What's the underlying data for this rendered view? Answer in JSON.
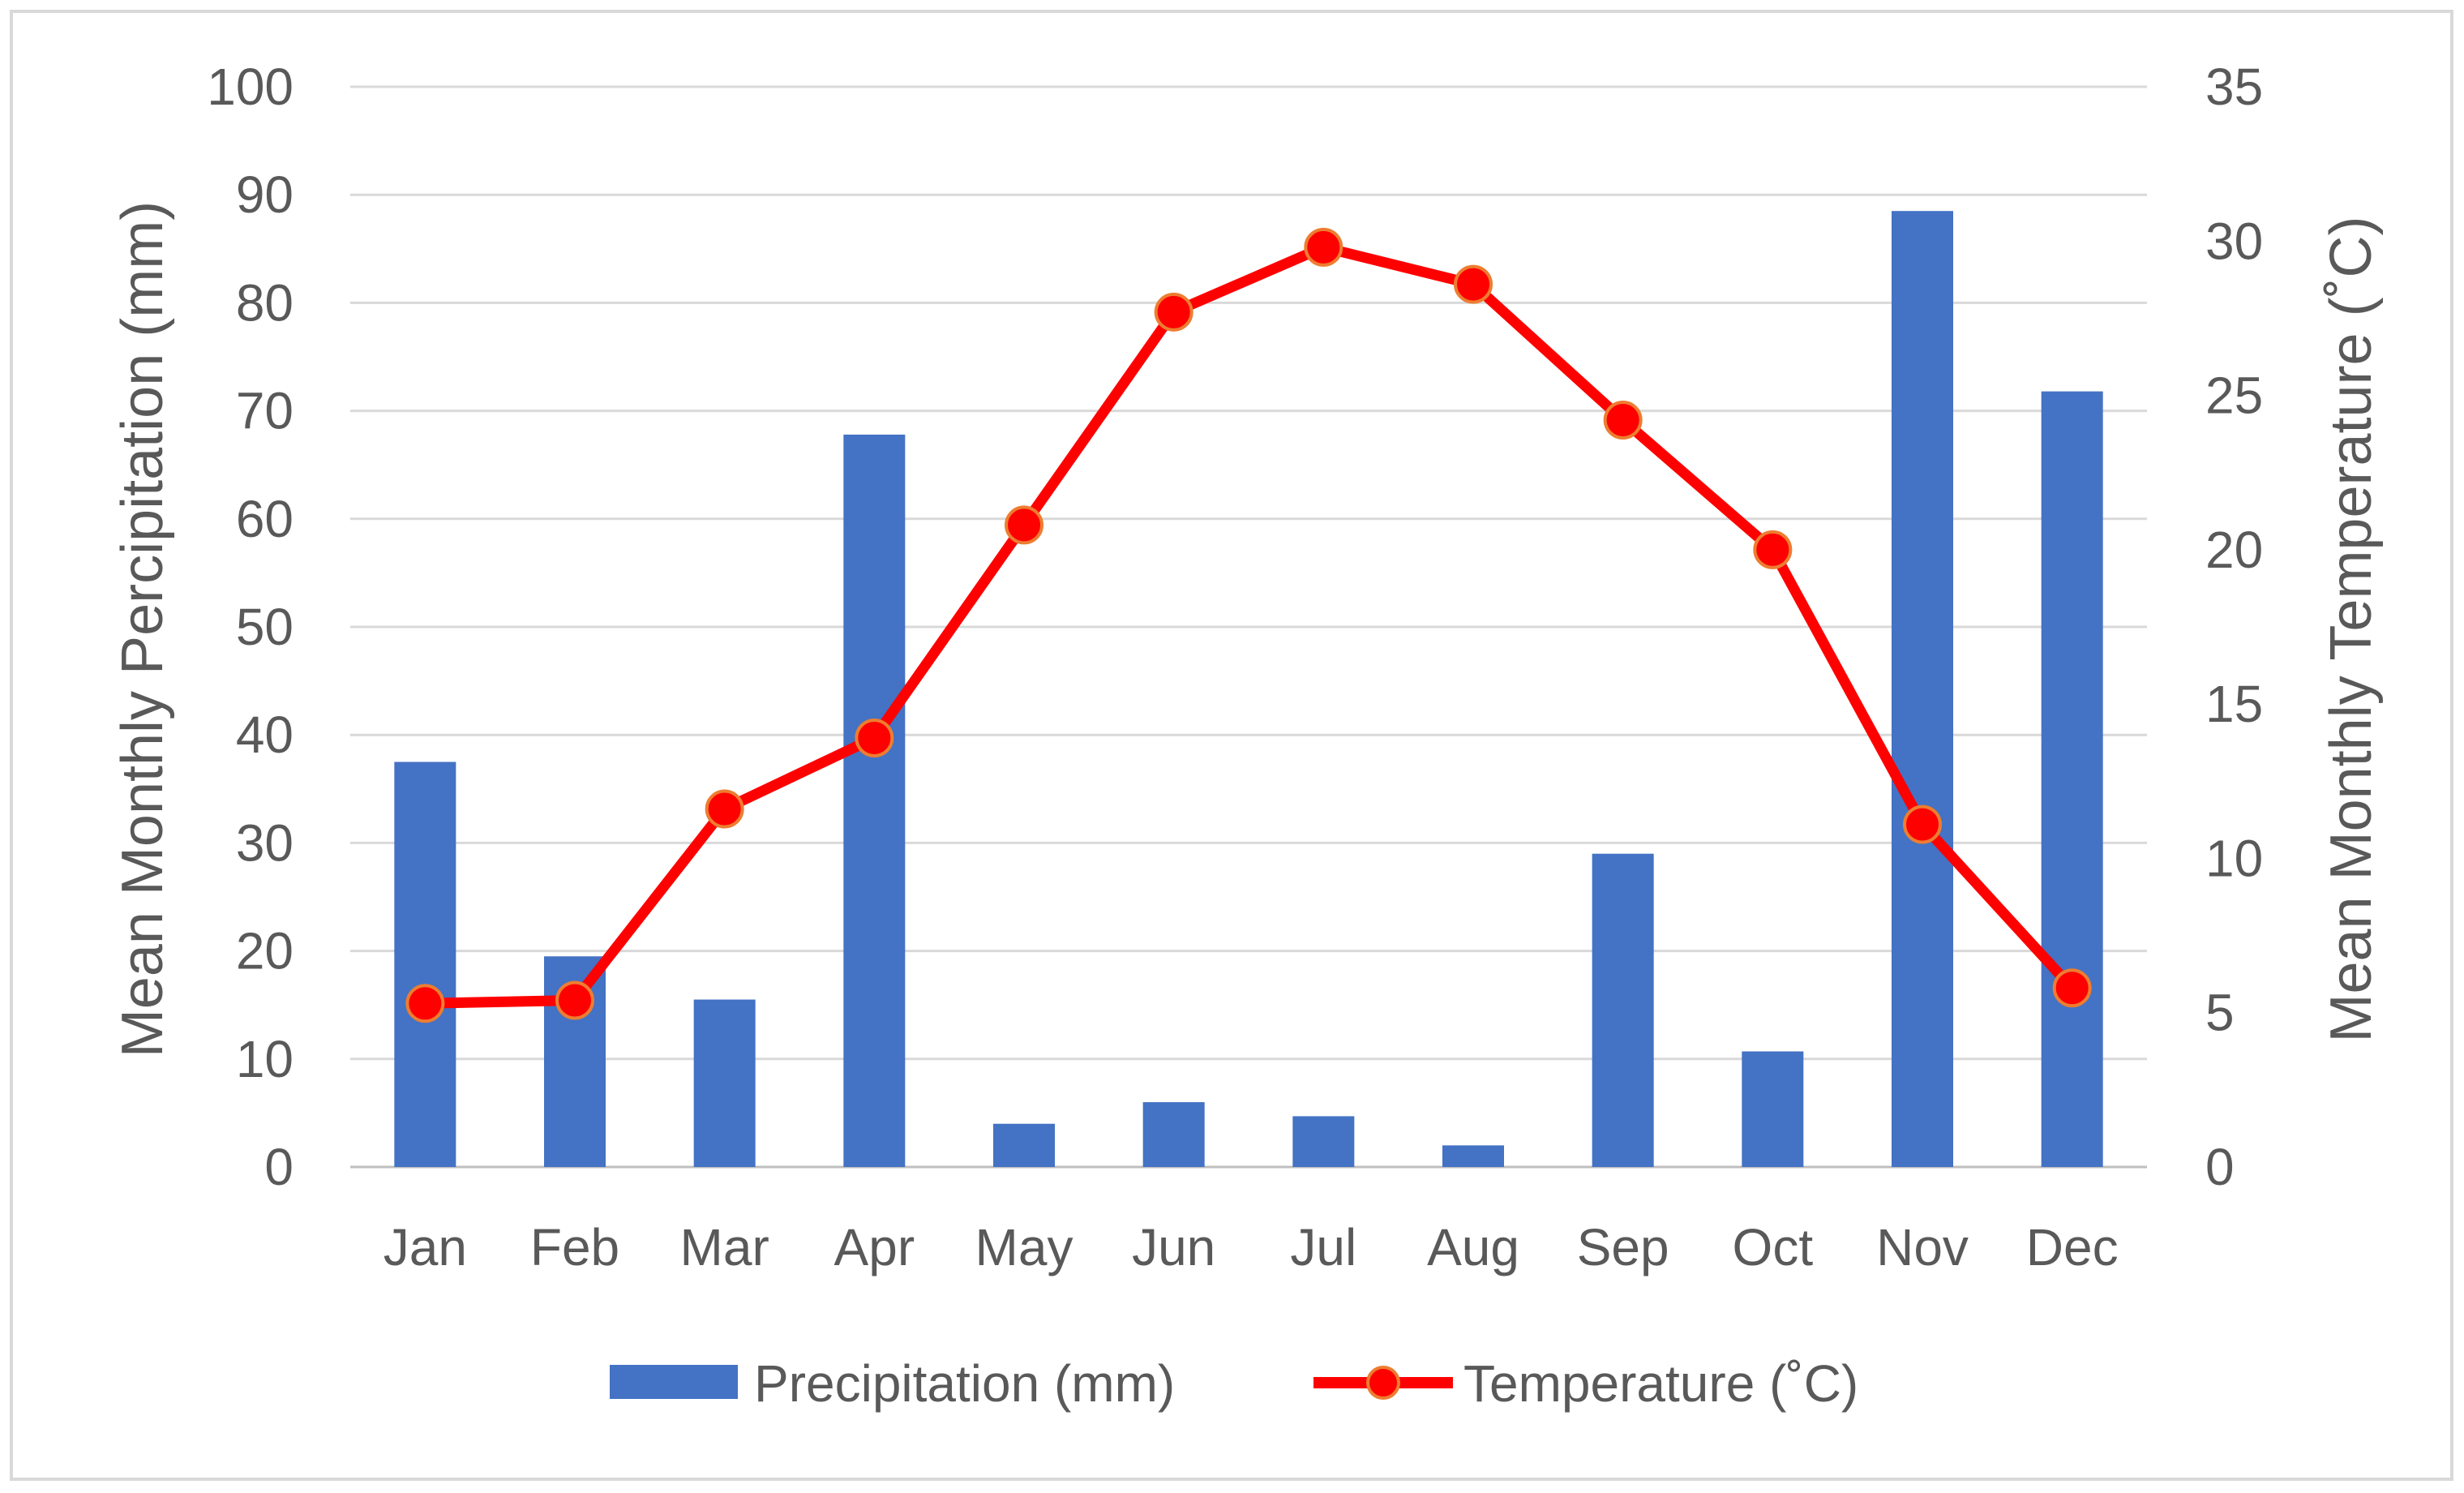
{
  "chart_data": {
    "type": "bar+line",
    "title": "",
    "categories": [
      "Jan",
      "Feb",
      "Mar",
      "Apr",
      "May",
      "Jun",
      "Jul",
      "Aug",
      "Sep",
      "Oct",
      "Nov",
      "Dec"
    ],
    "series": [
      {
        "name": "Precipitation (mm)",
        "type": "bar",
        "axis": "left",
        "color": "#4472C4",
        "values": [
          37.5,
          19.5,
          15.5,
          67.8,
          4.0,
          6.0,
          4.7,
          2.0,
          29.0,
          10.7,
          88.5,
          71.8
        ]
      },
      {
        "name": "Temperature (˚C)",
        "type": "line",
        "axis": "right",
        "color": "#FF0000",
        "marker_edge_color": "#ED7D31",
        "values": [
          5.3,
          5.4,
          11.6,
          13.9,
          20.8,
          27.7,
          29.8,
          28.6,
          24.2,
          20.0,
          11.1,
          5.8
        ]
      }
    ],
    "y_left": {
      "label": "Mean Monthly Percipitation (mm)",
      "ylim": [
        0,
        100
      ],
      "ticks": [
        "0",
        "10",
        "20",
        "30",
        "40",
        "50",
        "60",
        "70",
        "80",
        "90",
        "100"
      ]
    },
    "y_right": {
      "label": "Mean Monthly Temperature (˚C)",
      "ylim": [
        0,
        35
      ],
      "ticks": [
        "0",
        "5",
        "10",
        "15",
        "20",
        "25",
        "30",
        "35"
      ]
    },
    "grid": true,
    "legend_position": "bottom"
  }
}
